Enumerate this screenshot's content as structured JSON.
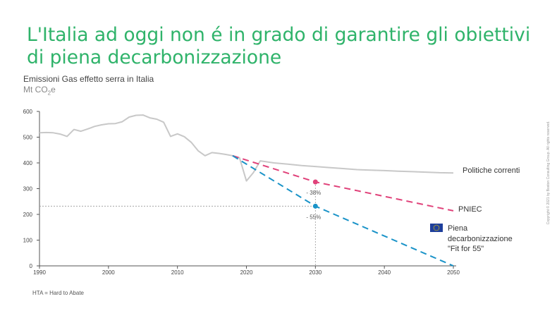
{
  "title": "L'Italia ad oggi non é in grado di garantire gli obiettivi di piena decarbonizzazione",
  "subtitle": "Emissioni  Gas effetto serra in Italia",
  "unit": {
    "prefix": "Mt CO",
    "subscript": "2",
    "suffix": "e"
  },
  "footnote": "HTA = Hard to Abate",
  "copyright": "Copyright © 2021 by Boston Consulting Group. All rights reserved.",
  "colors": {
    "title": "#2fb36a",
    "historical": "#c8c8c8",
    "pniec": "#e0427a",
    "fit55": "#1a93c8",
    "eu_flag": "#1e3f9c"
  },
  "eu_flag_icon": "eu-flag-icon",
  "chart_data": {
    "type": "line",
    "xlim": [
      1990,
      2050
    ],
    "ylim": [
      0,
      600
    ],
    "xticks": [
      "1990",
      "2000",
      "2010",
      "2020",
      "2030",
      "2040",
      "2050"
    ],
    "yticks": [
      "0",
      "100",
      "200",
      "300",
      "400",
      "500",
      "600"
    ],
    "grid": false,
    "series": [
      {
        "name": "Politiche correnti",
        "style": "solid",
        "x": [
          1990,
          1991,
          1992,
          1993,
          1994,
          1995,
          1996,
          1997,
          1998,
          1999,
          2000,
          2001,
          2002,
          2003,
          2004,
          2005,
          2006,
          2007,
          2008,
          2009,
          2010,
          2011,
          2012,
          2013,
          2014,
          2015,
          2016,
          2017,
          2018,
          2019,
          2020,
          2021,
          2022,
          2024,
          2026,
          2028,
          2030,
          2032,
          2034,
          2036,
          2038,
          2040,
          2042,
          2044,
          2046,
          2048,
          2050
        ],
        "y": [
          517,
          518,
          517,
          512,
          503,
          530,
          523,
          532,
          542,
          548,
          552,
          553,
          560,
          578,
          585,
          586,
          575,
          570,
          558,
          503,
          513,
          502,
          480,
          447,
          428,
          440,
          437,
          433,
          428,
          420,
          330,
          362,
          408,
          400,
          395,
          390,
          386,
          382,
          378,
          374,
          372,
          370,
          368,
          366,
          364,
          362,
          361
        ]
      },
      {
        "name": "PNIEC",
        "style": "dashed",
        "x": [
          2018,
          2030,
          2050
        ],
        "y": [
          428,
          326,
          214
        ]
      },
      {
        "name": "Piena decarbonizzazione \"Fit for 55\"",
        "style": "dashed",
        "x": [
          2018,
          2030,
          2050
        ],
        "y": [
          428,
          232,
          0
        ]
      }
    ],
    "markers": [
      {
        "series": "PNIEC",
        "x": 2030,
        "y": 326,
        "label": "- 38%"
      },
      {
        "series": "Piena decarbonizzazione \"Fit for 55\"",
        "x": 2030,
        "y": 232,
        "label": "- 55%"
      }
    ],
    "reference_lines": {
      "x": 2030,
      "y": 232
    },
    "legend_labels": {
      "current": "Politiche correnti",
      "pniec": "PNIEC",
      "fit55_line1": "Piena",
      "fit55_line2": "decarbonizzazione",
      "fit55_line3": "\"Fit for 55\""
    }
  }
}
